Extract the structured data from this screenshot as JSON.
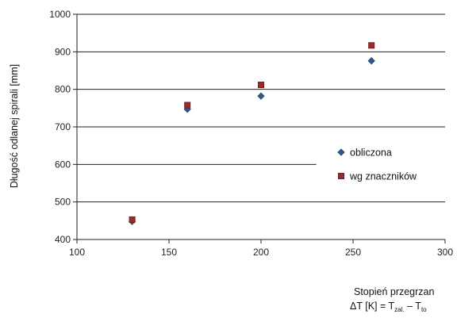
{
  "chart_data": {
    "type": "scatter",
    "title": "",
    "ylabel": "Długość odlanej spirali [mm]",
    "xlabel_line1": "Stopień przegrzan",
    "xlabel_line2": {
      "main": "ΔT [K] = T",
      "sub1": "zal.",
      "mid": " – T",
      "sub2": "to"
    },
    "xlim": [
      100,
      300
    ],
    "ylim": [
      400,
      1000
    ],
    "x_ticks": [
      100,
      150,
      200,
      250,
      300
    ],
    "y_ticks": [
      400,
      500,
      600,
      700,
      800,
      900,
      1000
    ],
    "grid": "horizontal",
    "legend_position": "right",
    "series": [
      {
        "name": "obliczona",
        "marker": "diamond",
        "color": "#2e5a8e",
        "points": [
          {
            "x": 130,
            "y": 448
          },
          {
            "x": 160,
            "y": 747
          },
          {
            "x": 200,
            "y": 782
          },
          {
            "x": 260,
            "y": 876
          }
        ]
      },
      {
        "name": "wg znaczników",
        "marker": "square",
        "color": "#9b2a2a",
        "points": [
          {
            "x": 130,
            "y": 453
          },
          {
            "x": 160,
            "y": 758
          },
          {
            "x": 200,
            "y": 812
          },
          {
            "x": 260,
            "y": 917
          }
        ]
      }
    ]
  }
}
